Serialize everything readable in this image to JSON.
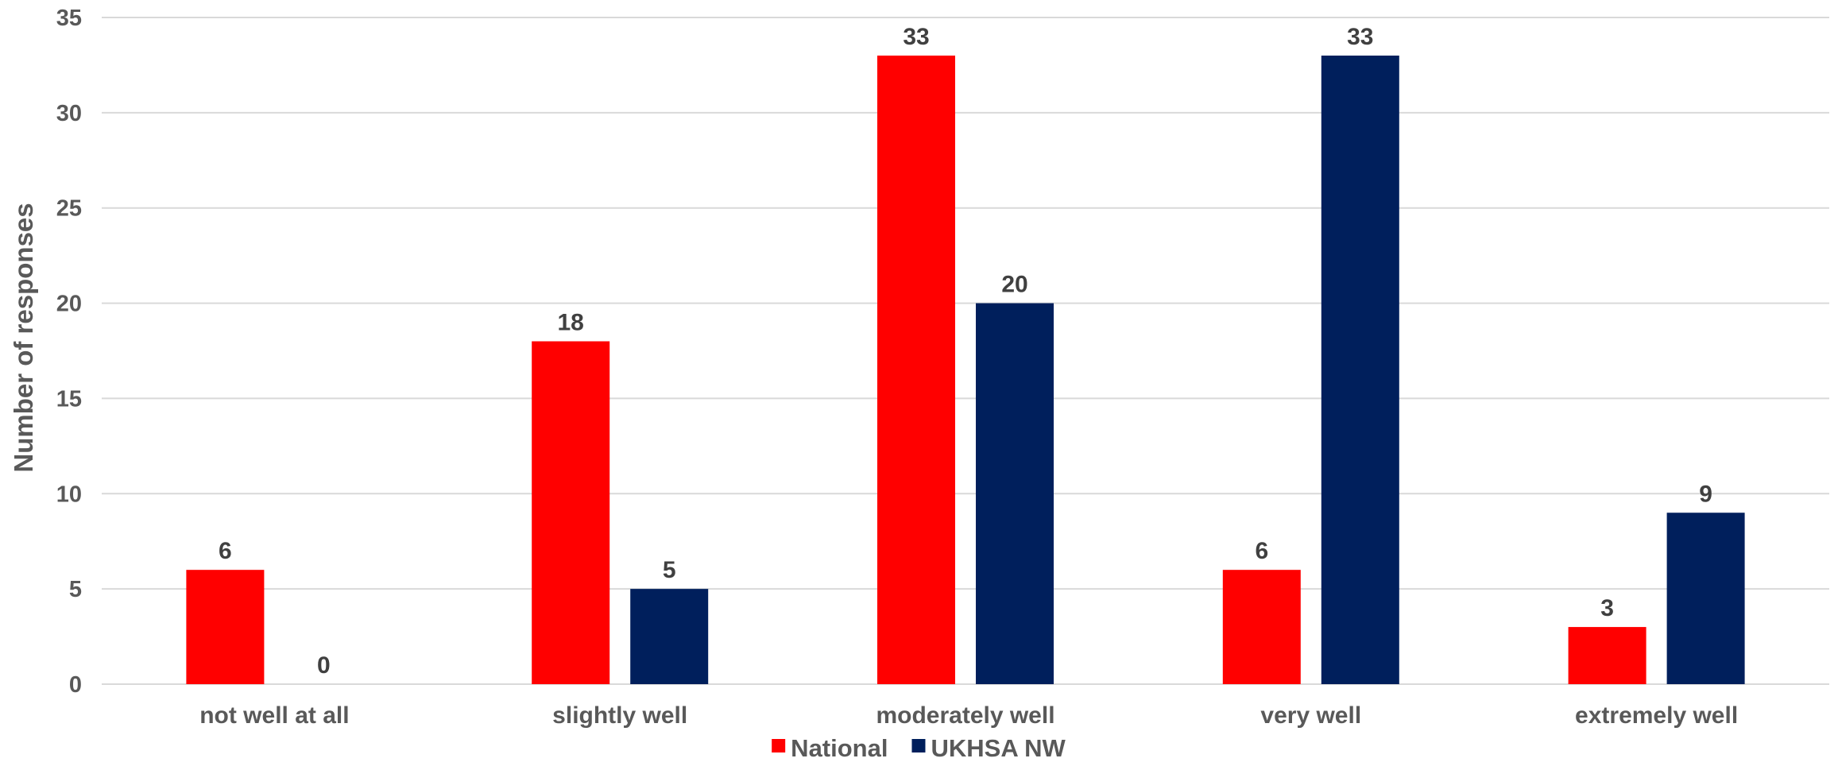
{
  "chart_data": {
    "type": "bar",
    "categories": [
      "not well at all",
      "slightly well",
      "moderately well",
      "very well",
      "extremely well"
    ],
    "series": [
      {
        "name": "National",
        "values": [
          6,
          18,
          33,
          6,
          3
        ],
        "color": "#ff0000"
      },
      {
        "name": "UKHSA NW",
        "values": [
          0,
          5,
          20,
          33,
          9
        ],
        "color": "#001f5c"
      }
    ],
    "title": "",
    "xlabel": "",
    "ylabel": "Number of responses",
    "ylim": [
      0,
      35
    ],
    "yticks": [
      0,
      5,
      10,
      15,
      20,
      25,
      30,
      35
    ],
    "grid": true,
    "legend_position": "bottom"
  }
}
